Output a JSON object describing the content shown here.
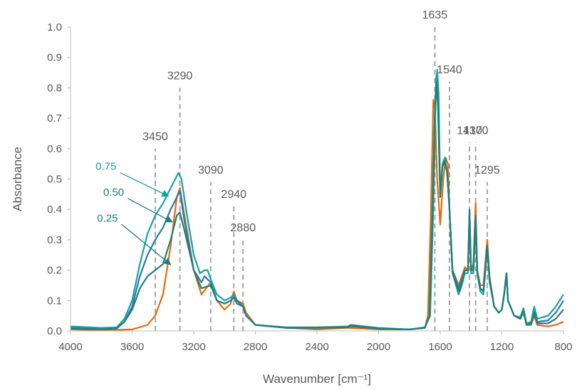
{
  "chart_data": {
    "type": "line",
    "title": "",
    "xlabel": "Wavenumber [cm⁻¹]",
    "ylabel": "Absorbance",
    "xlim": [
      4000,
      800
    ],
    "x_reversed": true,
    "ylim": [
      0,
      1.0
    ],
    "grid": false,
    "legend": "none",
    "x_ticks": [
      4000,
      3600,
      3200,
      2800,
      2400,
      2000,
      1600,
      1200,
      800
    ],
    "y_ticks": [
      "0.0",
      "0.1",
      "0.2",
      "0.3",
      "0.4",
      "0.5",
      "0.6",
      "0.7",
      "0.8",
      "0.9",
      "1.0"
    ],
    "series": [
      {
        "color": "#E46C0A",
        "points": [
          [
            4000,
            0.005
          ],
          [
            3800,
            0.002
          ],
          [
            3600,
            0.005
          ],
          [
            3500,
            0.02
          ],
          [
            3450,
            0.05
          ],
          [
            3400,
            0.12
          ],
          [
            3350,
            0.28
          ],
          [
            3310,
            0.44
          ],
          [
            3290,
            0.47
          ],
          [
            3260,
            0.38
          ],
          [
            3200,
            0.2
          ],
          [
            3150,
            0.12
          ],
          [
            3090,
            0.16
          ],
          [
            3050,
            0.1
          ],
          [
            3000,
            0.07
          ],
          [
            2960,
            0.09
          ],
          [
            2940,
            0.13
          ],
          [
            2920,
            0.1
          ],
          [
            2880,
            0.09
          ],
          [
            2860,
            0.06
          ],
          [
            2800,
            0.02
          ],
          [
            2600,
            0.01
          ],
          [
            2400,
            0.005
          ],
          [
            2200,
            0.01
          ],
          [
            2000,
            0.005
          ],
          [
            1800,
            0.005
          ],
          [
            1700,
            0.01
          ],
          [
            1680,
            0.05
          ],
          [
            1660,
            0.4
          ],
          [
            1645,
            0.76
          ],
          [
            1635,
            0.74
          ],
          [
            1620,
            0.5
          ],
          [
            1600,
            0.35
          ],
          [
            1580,
            0.5
          ],
          [
            1565,
            0.57
          ],
          [
            1550,
            0.55
          ],
          [
            1540,
            0.4
          ],
          [
            1520,
            0.2
          ],
          [
            1480,
            0.15
          ],
          [
            1460,
            0.18
          ],
          [
            1440,
            0.21
          ],
          [
            1420,
            0.2
          ],
          [
            1410,
            0.38
          ],
          [
            1400,
            0.2
          ],
          [
            1385,
            0.22
          ],
          [
            1370,
            0.42
          ],
          [
            1360,
            0.2
          ],
          [
            1340,
            0.15
          ],
          [
            1320,
            0.15
          ],
          [
            1295,
            0.3
          ],
          [
            1280,
            0.18
          ],
          [
            1250,
            0.08
          ],
          [
            1220,
            0.06
          ],
          [
            1200,
            0.07
          ],
          [
            1185,
            0.12
          ],
          [
            1170,
            0.19
          ],
          [
            1160,
            0.1
          ],
          [
            1120,
            0.05
          ],
          [
            1080,
            0.04
          ],
          [
            1060,
            0.06
          ],
          [
            1040,
            0.02
          ],
          [
            1010,
            0.02
          ],
          [
            990,
            0.05
          ],
          [
            970,
            0.02
          ],
          [
            900,
            0.015
          ],
          [
            850,
            0.02
          ],
          [
            800,
            0.03
          ]
        ]
      },
      {
        "color": "#2E75B6",
        "points": [
          [
            4000,
            0.01
          ],
          [
            3800,
            0.008
          ],
          [
            3700,
            0.01
          ],
          [
            3650,
            0.03
          ],
          [
            3600,
            0.08
          ],
          [
            3550,
            0.18
          ],
          [
            3500,
            0.25
          ],
          [
            3450,
            0.3
          ],
          [
            3400,
            0.34
          ],
          [
            3350,
            0.4
          ],
          [
            3300,
            0.45
          ],
          [
            3290,
            0.46
          ],
          [
            3260,
            0.36
          ],
          [
            3200,
            0.2
          ],
          [
            3150,
            0.16
          ],
          [
            3130,
            0.18
          ],
          [
            3090,
            0.16
          ],
          [
            3050,
            0.1
          ],
          [
            3000,
            0.09
          ],
          [
            2960,
            0.1
          ],
          [
            2940,
            0.11
          ],
          [
            2920,
            0.09
          ],
          [
            2880,
            0.08
          ],
          [
            2860,
            0.05
          ],
          [
            2800,
            0.02
          ],
          [
            2600,
            0.01
          ],
          [
            2400,
            0.01
          ],
          [
            2200,
            0.012
          ],
          [
            2180,
            0.015
          ],
          [
            2000,
            0.008
          ],
          [
            1800,
            0.005
          ],
          [
            1700,
            0.01
          ],
          [
            1670,
            0.05
          ],
          [
            1650,
            0.4
          ],
          [
            1635,
            0.7
          ],
          [
            1625,
            0.84
          ],
          [
            1615,
            0.75
          ],
          [
            1600,
            0.45
          ],
          [
            1585,
            0.55
          ],
          [
            1570,
            0.56
          ],
          [
            1555,
            0.52
          ],
          [
            1540,
            0.4
          ],
          [
            1520,
            0.2
          ],
          [
            1480,
            0.14
          ],
          [
            1460,
            0.17
          ],
          [
            1440,
            0.2
          ],
          [
            1420,
            0.2
          ],
          [
            1410,
            0.4
          ],
          [
            1400,
            0.2
          ],
          [
            1385,
            0.2
          ],
          [
            1370,
            0.38
          ],
          [
            1360,
            0.2
          ],
          [
            1340,
            0.14
          ],
          [
            1320,
            0.13
          ],
          [
            1295,
            0.28
          ],
          [
            1280,
            0.17
          ],
          [
            1250,
            0.08
          ],
          [
            1220,
            0.06
          ],
          [
            1200,
            0.07
          ],
          [
            1185,
            0.12
          ],
          [
            1170,
            0.19
          ],
          [
            1160,
            0.1
          ],
          [
            1120,
            0.05
          ],
          [
            1080,
            0.04
          ],
          [
            1060,
            0.07
          ],
          [
            1040,
            0.02
          ],
          [
            1010,
            0.025
          ],
          [
            990,
            0.07
          ],
          [
            970,
            0.03
          ],
          [
            900,
            0.035
          ],
          [
            850,
            0.06
          ],
          [
            800,
            0.1
          ]
        ]
      },
      {
        "color": "#17A2A2",
        "points": [
          [
            4000,
            0.015
          ],
          [
            3800,
            0.01
          ],
          [
            3700,
            0.012
          ],
          [
            3650,
            0.04
          ],
          [
            3600,
            0.1
          ],
          [
            3550,
            0.22
          ],
          [
            3500,
            0.32
          ],
          [
            3450,
            0.38
          ],
          [
            3400,
            0.42
          ],
          [
            3350,
            0.47
          ],
          [
            3310,
            0.51
          ],
          [
            3300,
            0.52
          ],
          [
            3280,
            0.5
          ],
          [
            3250,
            0.4
          ],
          [
            3200,
            0.25
          ],
          [
            3160,
            0.19
          ],
          [
            3130,
            0.2
          ],
          [
            3110,
            0.2
          ],
          [
            3090,
            0.17
          ],
          [
            3050,
            0.12
          ],
          [
            3000,
            0.1
          ],
          [
            2960,
            0.11
          ],
          [
            2940,
            0.12
          ],
          [
            2920,
            0.1
          ],
          [
            2880,
            0.08
          ],
          [
            2860,
            0.05
          ],
          [
            2800,
            0.02
          ],
          [
            2600,
            0.012
          ],
          [
            2400,
            0.012
          ],
          [
            2200,
            0.015
          ],
          [
            2180,
            0.02
          ],
          [
            2000,
            0.01
          ],
          [
            1800,
            0.005
          ],
          [
            1700,
            0.012
          ],
          [
            1665,
            0.05
          ],
          [
            1645,
            0.4
          ],
          [
            1630,
            0.75
          ],
          [
            1620,
            0.86
          ],
          [
            1610,
            0.78
          ],
          [
            1600,
            0.45
          ],
          [
            1585,
            0.55
          ],
          [
            1570,
            0.57
          ],
          [
            1555,
            0.52
          ],
          [
            1540,
            0.4
          ],
          [
            1520,
            0.19
          ],
          [
            1480,
            0.12
          ],
          [
            1460,
            0.15
          ],
          [
            1440,
            0.19
          ],
          [
            1420,
            0.19
          ],
          [
            1410,
            0.39
          ],
          [
            1400,
            0.19
          ],
          [
            1385,
            0.19
          ],
          [
            1370,
            0.36
          ],
          [
            1360,
            0.19
          ],
          [
            1340,
            0.13
          ],
          [
            1320,
            0.12
          ],
          [
            1295,
            0.27
          ],
          [
            1280,
            0.16
          ],
          [
            1250,
            0.08
          ],
          [
            1220,
            0.06
          ],
          [
            1200,
            0.07
          ],
          [
            1185,
            0.12
          ],
          [
            1170,
            0.19
          ],
          [
            1160,
            0.1
          ],
          [
            1120,
            0.05
          ],
          [
            1080,
            0.045
          ],
          [
            1060,
            0.075
          ],
          [
            1040,
            0.025
          ],
          [
            1010,
            0.03
          ],
          [
            990,
            0.08
          ],
          [
            970,
            0.04
          ],
          [
            900,
            0.05
          ],
          [
            850,
            0.08
          ],
          [
            800,
            0.12
          ]
        ]
      },
      {
        "color": "#1F7F7A",
        "points": [
          [
            4000,
            0.008
          ],
          [
            3800,
            0.005
          ],
          [
            3700,
            0.008
          ],
          [
            3650,
            0.03
          ],
          [
            3600,
            0.07
          ],
          [
            3550,
            0.14
          ],
          [
            3500,
            0.18
          ],
          [
            3450,
            0.2
          ],
          [
            3400,
            0.22
          ],
          [
            3350,
            0.3
          ],
          [
            3310,
            0.38
          ],
          [
            3290,
            0.39
          ],
          [
            3260,
            0.33
          ],
          [
            3200,
            0.2
          ],
          [
            3150,
            0.14
          ],
          [
            3090,
            0.15
          ],
          [
            3050,
            0.1
          ],
          [
            3000,
            0.09
          ],
          [
            2960,
            0.1
          ],
          [
            2940,
            0.11
          ],
          [
            2920,
            0.1
          ],
          [
            2880,
            0.08
          ],
          [
            2860,
            0.05
          ],
          [
            2800,
            0.02
          ],
          [
            2600,
            0.01
          ],
          [
            2400,
            0.01
          ],
          [
            2200,
            0.012
          ],
          [
            2180,
            0.018
          ],
          [
            2000,
            0.008
          ],
          [
            1800,
            0.005
          ],
          [
            1700,
            0.01
          ],
          [
            1670,
            0.05
          ],
          [
            1650,
            0.4
          ],
          [
            1635,
            0.72
          ],
          [
            1625,
            0.82
          ],
          [
            1615,
            0.74
          ],
          [
            1600,
            0.44
          ],
          [
            1585,
            0.54
          ],
          [
            1570,
            0.56
          ],
          [
            1555,
            0.52
          ],
          [
            1540,
            0.4
          ],
          [
            1520,
            0.19
          ],
          [
            1480,
            0.13
          ],
          [
            1460,
            0.16
          ],
          [
            1440,
            0.2
          ],
          [
            1420,
            0.2
          ],
          [
            1410,
            0.39
          ],
          [
            1400,
            0.2
          ],
          [
            1385,
            0.2
          ],
          [
            1370,
            0.37
          ],
          [
            1360,
            0.2
          ],
          [
            1340,
            0.14
          ],
          [
            1320,
            0.13
          ],
          [
            1295,
            0.28
          ],
          [
            1280,
            0.17
          ],
          [
            1250,
            0.08
          ],
          [
            1220,
            0.06
          ],
          [
            1200,
            0.07
          ],
          [
            1185,
            0.12
          ],
          [
            1170,
            0.19
          ],
          [
            1160,
            0.1
          ],
          [
            1120,
            0.05
          ],
          [
            1080,
            0.04
          ],
          [
            1060,
            0.065
          ],
          [
            1040,
            0.02
          ],
          [
            1010,
            0.022
          ],
          [
            990,
            0.06
          ],
          [
            970,
            0.025
          ],
          [
            900,
            0.025
          ],
          [
            850,
            0.04
          ],
          [
            800,
            0.07
          ]
        ]
      }
    ],
    "peak_markers": [
      {
        "x": 3450,
        "label": "3450",
        "top": 0.6
      },
      {
        "x": 3290,
        "label": "3290",
        "top": 0.8
      },
      {
        "x": 3090,
        "label": "3090",
        "top": 0.49
      },
      {
        "x": 2940,
        "label": "2940",
        "top": 0.41
      },
      {
        "x": 2880,
        "label": "2880",
        "top": 0.3
      },
      {
        "x": 1635,
        "label": "1635",
        "top": 1.0
      },
      {
        "x": 1540,
        "label": "1540",
        "top": 0.82
      },
      {
        "x": 1410,
        "label": "1410",
        "top": 0.62
      },
      {
        "x": 1370,
        "label": "1370",
        "top": 0.62
      },
      {
        "x": 1295,
        "label": "1295",
        "top": 0.49
      }
    ],
    "annotations": [
      {
        "text": "0.75",
        "color": "#17A2A2",
        "target": [
          3370,
          0.445
        ],
        "text_pos": [
          3770,
          0.53
        ]
      },
      {
        "text": "0.50",
        "color": "#1F7F7A",
        "target": [
          3345,
          0.36
        ],
        "text_pos": [
          3720,
          0.445
        ]
      },
      {
        "text": "0.25",
        "color": "#1F7F7A",
        "target": [
          3355,
          0.22
        ],
        "text_pos": [
          3760,
          0.36
        ]
      }
    ]
  }
}
